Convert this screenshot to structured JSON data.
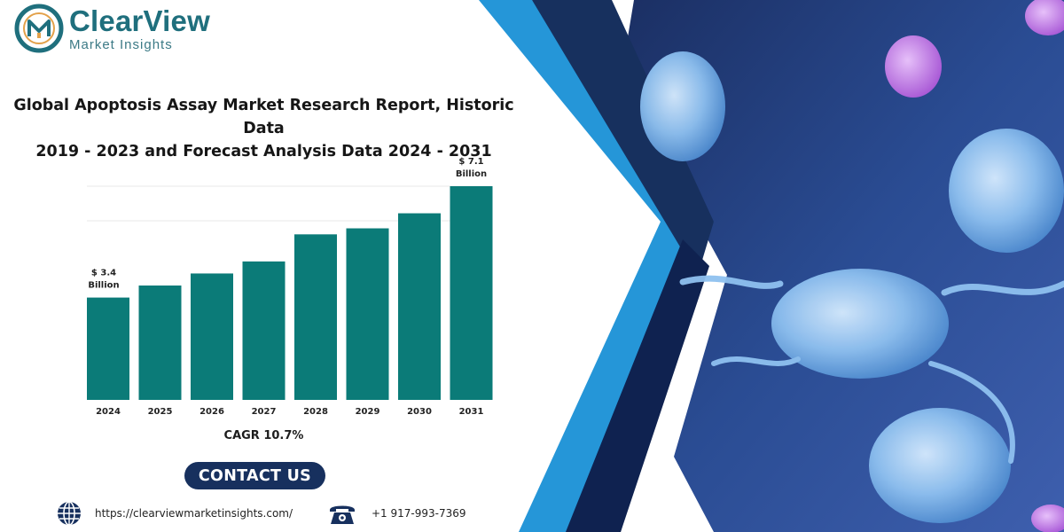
{
  "brand": {
    "name": "ClearView",
    "tagline": "Market Insights",
    "colors": {
      "primary": "#1f6f7d",
      "bar": "#0b7b78",
      "navy": "#17305e",
      "blue": "#2596d8"
    }
  },
  "report": {
    "title_line1": "Global Apoptosis Assay Market Research Report, Historic Data",
    "title_line2": "2019 - 2023 and Forecast Analysis Data 2024 - 2031"
  },
  "chart_data": {
    "type": "bar",
    "categories": [
      "2024",
      "2025",
      "2026",
      "2027",
      "2028",
      "2029",
      "2030",
      "2031"
    ],
    "values": [
      3.4,
      3.8,
      4.2,
      4.6,
      5.5,
      5.7,
      6.2,
      7.1
    ],
    "data_labels": [
      {
        "index": 0,
        "line1": "$ 3.4",
        "line2": "Billion"
      },
      {
        "index": 7,
        "line1": "$ 7.1",
        "line2": "Billion"
      }
    ],
    "unit": "USD Billion",
    "grid": true,
    "legend": "none"
  },
  "cagr": "CAGR 10.7%",
  "contact": {
    "label": "CONTACT US"
  },
  "footer": {
    "url": "https://clearviewmarketinsights.com/",
    "phone": "+1 917-993-7369",
    "url_icon": "globe-icon",
    "phone_icon": "telephone-icon"
  }
}
